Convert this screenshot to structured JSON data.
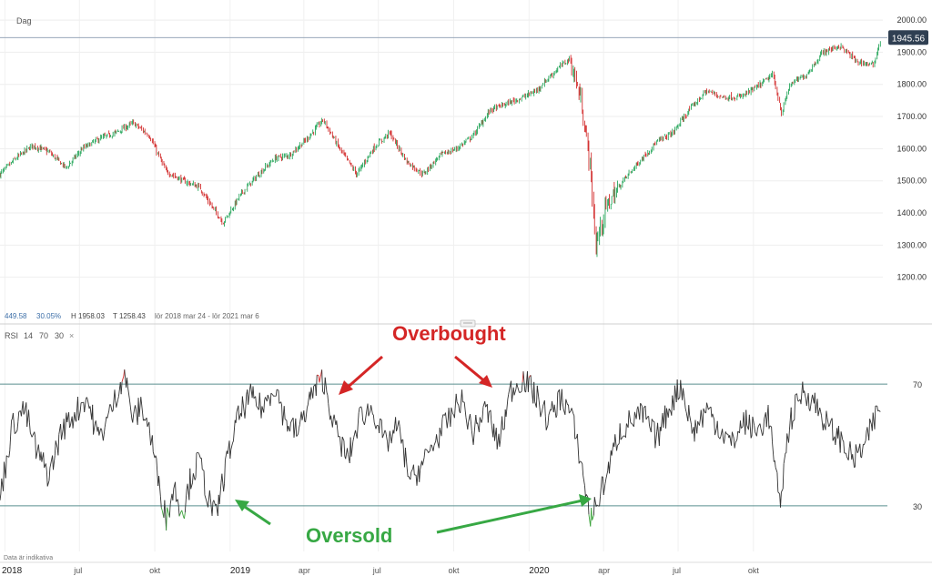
{
  "header": {
    "interval": "Dag"
  },
  "info_bar": {
    "change": "449.58",
    "change_pct": "30.05%",
    "high": "H 1958.03",
    "low": "T 1258.43",
    "range": "lör 2018 mar 24 - lör 2021 mar 6"
  },
  "rsi_header": {
    "name": "RSI",
    "period": "14",
    "upper": "70",
    "lower": "30",
    "close_glyph": "×"
  },
  "current_price": "1945.56",
  "footer": {
    "note": "Data är indikativa"
  },
  "annotations": {
    "overbought": "Overbought",
    "oversold": "Oversold"
  },
  "colors": {
    "up": "#26a65b",
    "down": "#d32f2f",
    "overbought": "#d32f2f",
    "oversold": "#3da33d",
    "annot_red": "#d42626",
    "annot_green": "#37a844",
    "rsi_line": "#333333",
    "level_line": "#5a8f8f"
  },
  "chart_data": [
    {
      "type": "candlestick",
      "title": "",
      "y_axis_ticks": [
        1200,
        1300,
        1400,
        1500,
        1600,
        1700,
        1800,
        1900,
        2000
      ],
      "y_tick_labels": [
        "1200.00",
        "1300.00",
        "1400.00",
        "1500.00",
        "1600.00",
        "1700.00",
        "1800.00",
        "1900.00",
        "2000.00"
      ],
      "ylim": [
        1100,
        2020
      ],
      "x_tick_labels": [
        "2018",
        "jul",
        "okt",
        "2019",
        "apr",
        "jul",
        "okt",
        "2020",
        "apr",
        "jul",
        "okt"
      ],
      "x_ticks": [
        "2018-04-01",
        "2018-07-01",
        "2018-10-01",
        "2019-01-01",
        "2019-04-01",
        "2019-07-01",
        "2019-10-01",
        "2020-01-01",
        "2020-04-01",
        "2020-07-01",
        "2020-10-01"
      ],
      "xlim": [
        "2018-03-26",
        "2021-03-08"
      ],
      "grid": true,
      "close_series": {
        "dates": [
          "2018-03-26",
          "2018-04-15",
          "2018-05-05",
          "2018-05-25",
          "2018-06-15",
          "2018-07-05",
          "2018-07-25",
          "2018-08-15",
          "2018-09-05",
          "2018-09-25",
          "2018-10-15",
          "2018-11-05",
          "2018-11-25",
          "2018-12-10",
          "2018-12-24",
          "2019-01-15",
          "2019-02-05",
          "2019-02-25",
          "2019-03-15",
          "2019-04-05",
          "2019-04-25",
          "2019-05-15",
          "2019-06-05",
          "2019-06-25",
          "2019-07-15",
          "2019-08-05",
          "2019-08-25",
          "2019-09-15",
          "2019-10-05",
          "2019-10-25",
          "2019-11-15",
          "2019-12-05",
          "2019-12-25",
          "2020-01-10",
          "2020-01-25",
          "2020-02-10",
          "2020-02-20",
          "2020-03-05",
          "2020-03-16",
          "2020-03-23",
          "2020-04-05",
          "2020-04-25",
          "2020-05-15",
          "2020-06-05",
          "2020-06-25",
          "2020-07-15",
          "2020-08-05",
          "2020-08-25",
          "2020-09-15",
          "2020-10-05",
          "2020-10-25",
          "2020-11-05",
          "2020-11-15",
          "2020-12-05",
          "2020-12-25",
          "2021-01-15",
          "2021-02-05",
          "2021-02-25",
          "2021-03-06"
        ],
        "close": [
          1520,
          1570,
          1610,
          1590,
          1540,
          1600,
          1630,
          1650,
          1680,
          1640,
          1530,
          1500,
          1480,
          1420,
          1370,
          1460,
          1520,
          1570,
          1580,
          1630,
          1690,
          1600,
          1520,
          1600,
          1650,
          1560,
          1520,
          1580,
          1600,
          1640,
          1720,
          1740,
          1760,
          1780,
          1820,
          1860,
          1880,
          1750,
          1550,
          1300,
          1420,
          1500,
          1560,
          1620,
          1650,
          1720,
          1780,
          1760,
          1760,
          1790,
          1830,
          1710,
          1800,
          1830,
          1900,
          1920,
          1870,
          1860,
          1945.56
        ]
      },
      "current_value": 1945.56
    },
    {
      "type": "line",
      "name": "RSI",
      "period": 14,
      "levels": [
        70,
        30
      ],
      "level_labels": [
        "70",
        "30"
      ],
      "ylim": [
        18,
        82
      ],
      "dates": [
        "2018-03-26",
        "2018-04-10",
        "2018-04-25",
        "2018-05-10",
        "2018-05-25",
        "2018-06-10",
        "2018-06-25",
        "2018-07-10",
        "2018-07-25",
        "2018-08-10",
        "2018-08-25",
        "2018-09-05",
        "2018-09-15",
        "2018-09-25",
        "2018-10-05",
        "2018-10-15",
        "2018-10-25",
        "2018-11-05",
        "2018-11-15",
        "2018-11-25",
        "2018-12-05",
        "2018-12-15",
        "2018-12-26",
        "2019-01-10",
        "2019-01-25",
        "2019-02-10",
        "2019-02-25",
        "2019-03-10",
        "2019-03-25",
        "2019-04-10",
        "2019-04-25",
        "2019-05-10",
        "2019-05-25",
        "2019-06-10",
        "2019-06-25",
        "2019-07-10",
        "2019-07-25",
        "2019-08-10",
        "2019-08-25",
        "2019-09-10",
        "2019-09-25",
        "2019-10-10",
        "2019-10-25",
        "2019-11-10",
        "2019-11-25",
        "2019-12-10",
        "2019-12-25",
        "2020-01-10",
        "2020-01-25",
        "2020-02-10",
        "2020-02-22",
        "2020-03-05",
        "2020-03-16",
        "2020-03-23",
        "2020-04-05",
        "2020-04-20",
        "2020-05-05",
        "2020-05-20",
        "2020-06-05",
        "2020-06-20",
        "2020-07-05",
        "2020-07-20",
        "2020-08-05",
        "2020-08-20",
        "2020-09-05",
        "2020-09-20",
        "2020-10-05",
        "2020-10-20",
        "2020-11-02",
        "2020-11-15",
        "2020-12-01",
        "2020-12-15",
        "2021-01-01",
        "2021-01-15",
        "2021-02-01",
        "2021-02-15",
        "2021-03-06"
      ],
      "values": [
        32,
        56,
        62,
        48,
        40,
        55,
        60,
        66,
        52,
        62,
        74,
        58,
        63,
        55,
        40,
        26,
        36,
        28,
        40,
        45,
        33,
        26,
        42,
        58,
        66,
        62,
        70,
        58,
        54,
        66,
        72,
        55,
        45,
        60,
        62,
        50,
        56,
        38,
        44,
        52,
        58,
        65,
        54,
        62,
        50,
        68,
        72,
        66,
        58,
        66,
        60,
        44,
        26,
        30,
        40,
        54,
        58,
        60,
        52,
        62,
        70,
        54,
        62,
        56,
        50,
        58,
        54,
        60,
        30,
        58,
        68,
        64,
        56,
        52,
        45,
        50,
        64
      ]
    }
  ]
}
